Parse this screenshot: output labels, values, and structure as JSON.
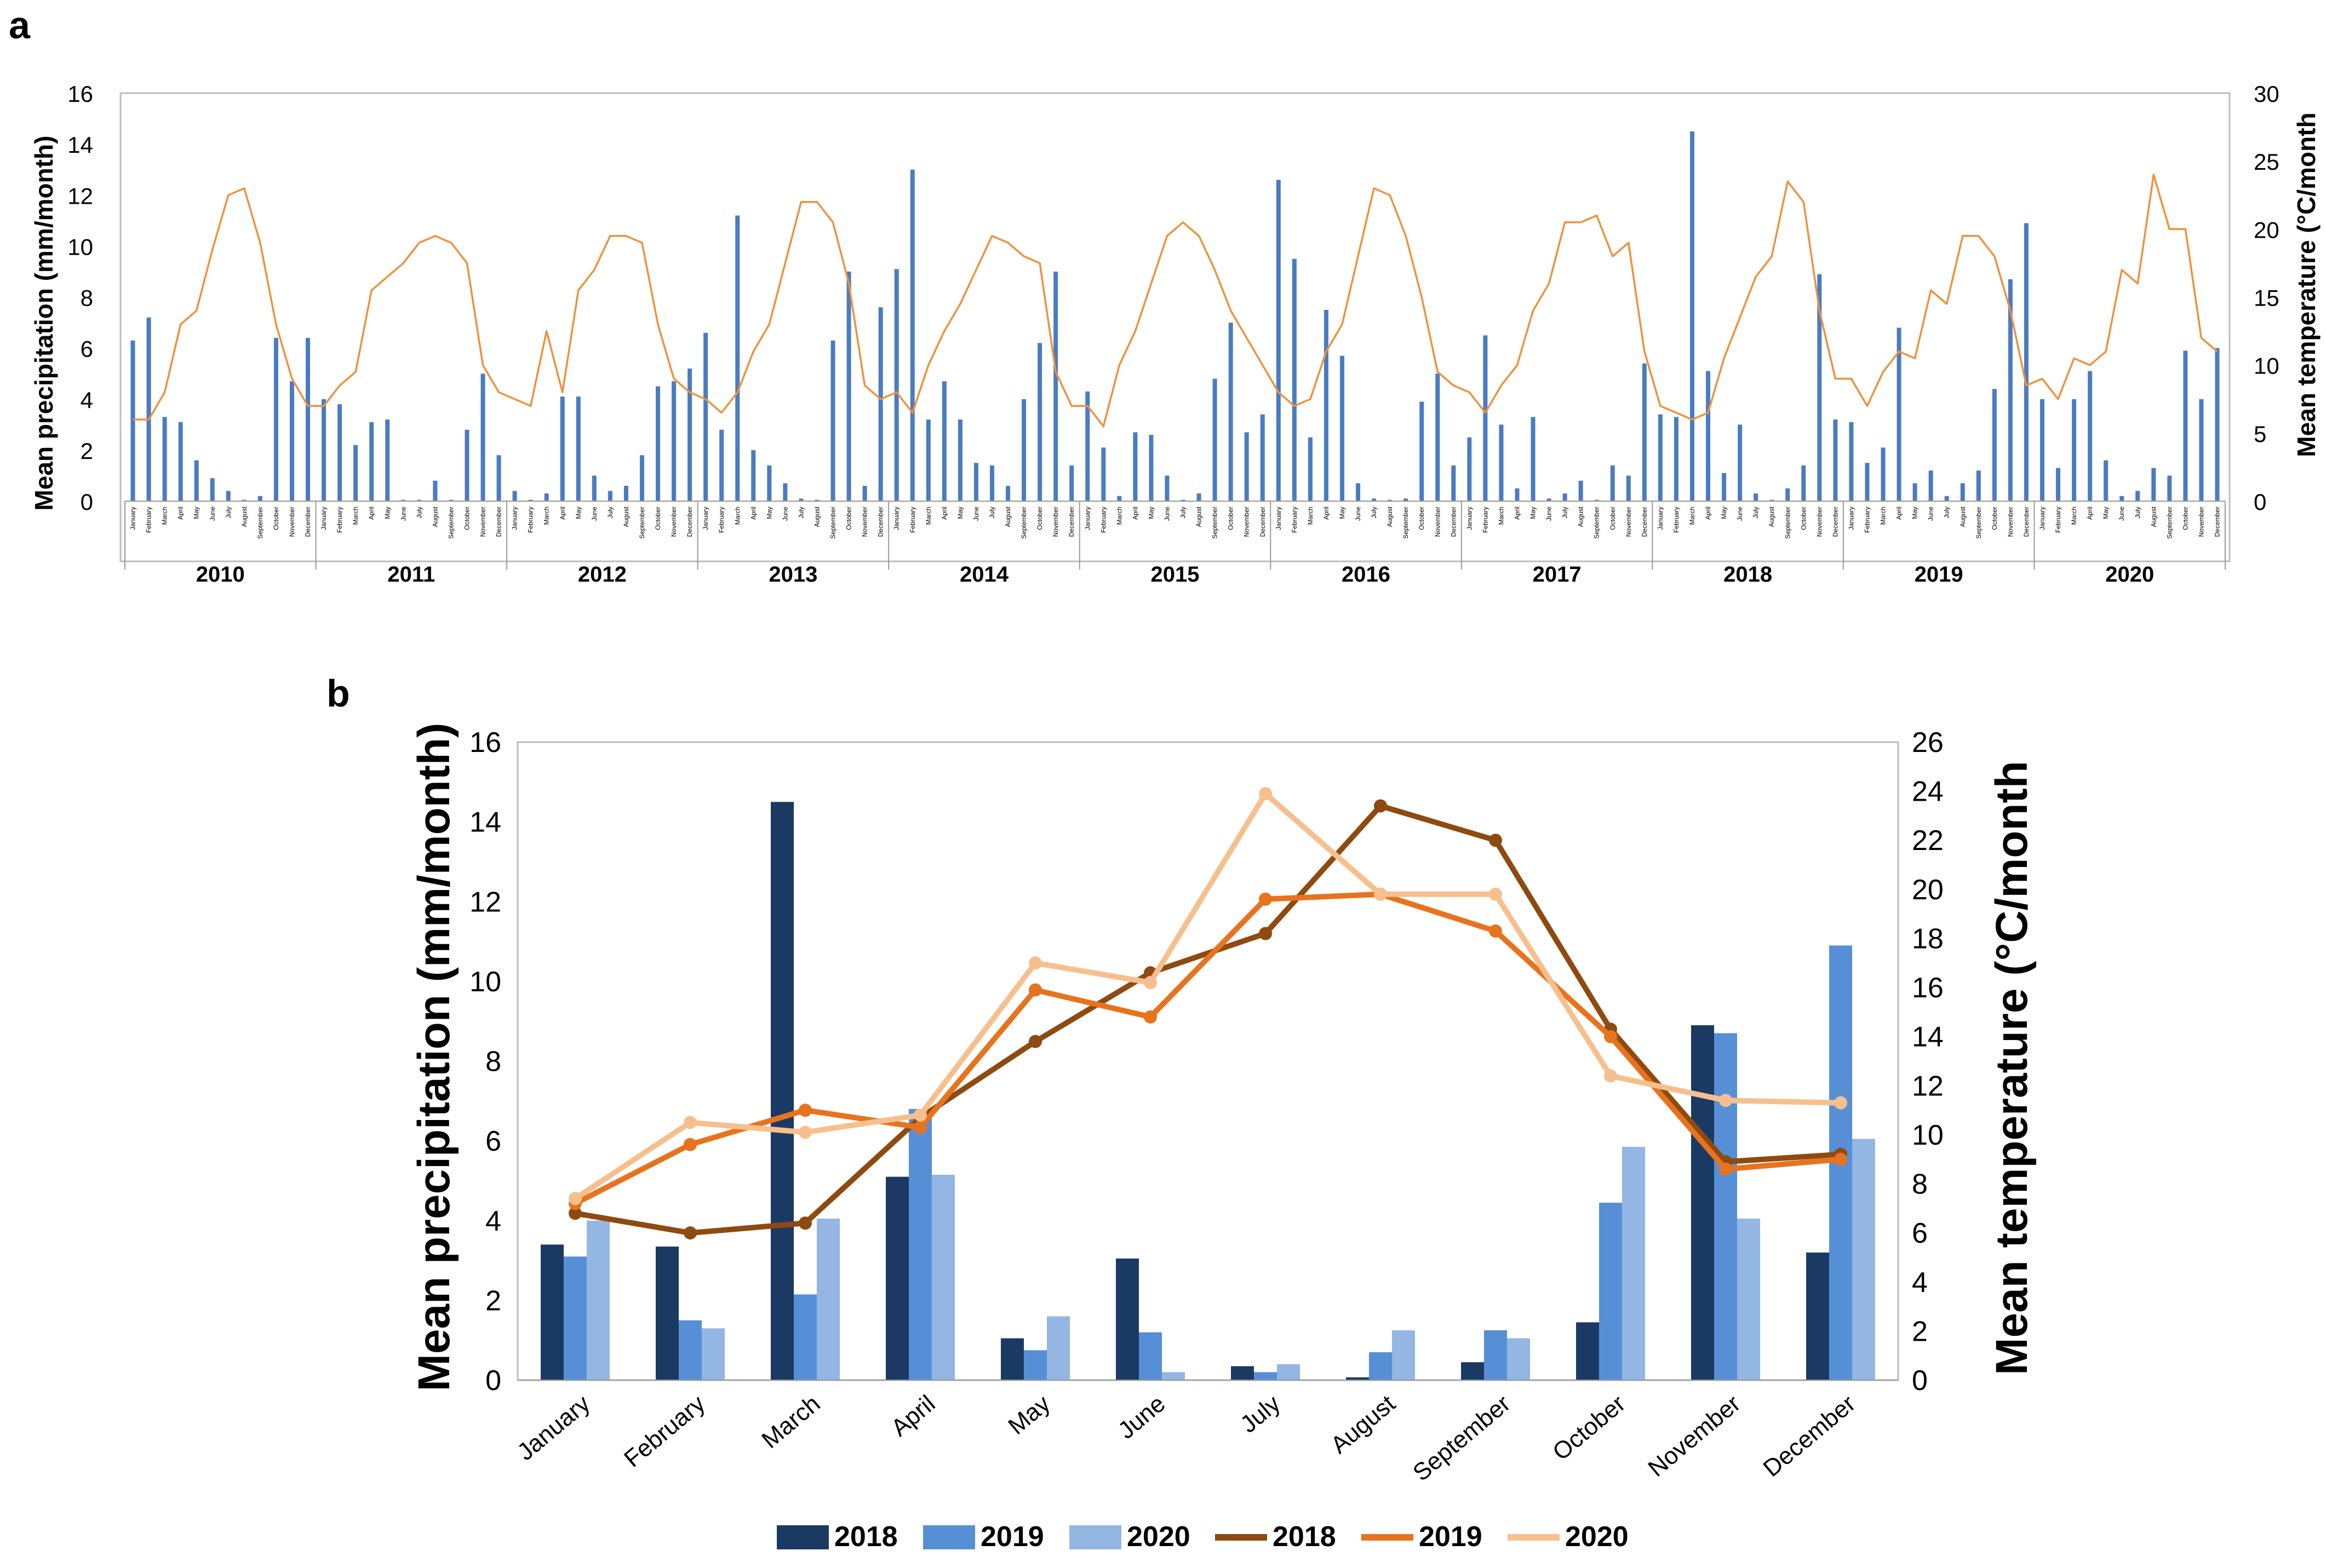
{
  "panel_labels": {
    "a": "a",
    "b": "b"
  },
  "colors": {
    "bar_a": "#4a7cc0",
    "line_a": "#f0913c",
    "bar_2018": "#1b3a63",
    "bar_2019": "#578fd6",
    "bar_2020": "#93b6e3",
    "line_2018": "#8e4a10",
    "line_2019": "#e8731e",
    "line_2020": "#f6c08e",
    "axis": "#9a9a9a",
    "text": "#000000"
  },
  "chart_data": [
    {
      "id": "a",
      "type": "bar+line",
      "title": "",
      "ylabel": "Mean precipitation (mm/month)",
      "y2label": "Mean temperature (°C/month",
      "ylim": [
        0,
        16
      ],
      "y2lim": [
        0,
        30
      ],
      "yticks": [
        0,
        2,
        4,
        6,
        8,
        10,
        12,
        14,
        16
      ],
      "y2ticks": [
        0,
        5,
        10,
        15,
        20,
        25,
        30
      ],
      "months": [
        "January",
        "February",
        "March",
        "April",
        "May",
        "June",
        "July",
        "August",
        "September",
        "October",
        "November",
        "December"
      ],
      "years": [
        "2010",
        "2011",
        "2012",
        "2013",
        "2014",
        "2015",
        "2016",
        "2017",
        "2018",
        "2019",
        "2020"
      ],
      "precipitation": [
        6.3,
        7.2,
        3.3,
        3.1,
        1.6,
        0.9,
        0.4,
        0.05,
        0.2,
        6.4,
        4.7,
        6.4,
        4.0,
        3.8,
        2.2,
        3.1,
        3.2,
        0.05,
        0.05,
        0.8,
        0.05,
        2.8,
        5.0,
        1.8,
        0.4,
        0.05,
        0.3,
        4.1,
        4.1,
        1.0,
        0.4,
        0.6,
        1.8,
        4.5,
        4.7,
        5.2,
        6.6,
        2.8,
        11.2,
        2.0,
        1.4,
        0.7,
        0.1,
        0.05,
        6.3,
        9.0,
        0.6,
        7.6,
        9.1,
        13.0,
        3.2,
        4.7,
        3.2,
        1.5,
        1.4,
        0.6,
        4.0,
        6.2,
        9.0,
        1.4,
        4.3,
        2.1,
        0.2,
        2.7,
        2.6,
        1.0,
        0.05,
        0.3,
        4.8,
        7.0,
        2.7,
        3.4,
        12.6,
        9.5,
        2.5,
        7.5,
        5.7,
        0.7,
        0.1,
        0.05,
        0.1,
        3.9,
        5.0,
        1.4,
        2.5,
        6.5,
        3.0,
        0.5,
        3.3,
        0.1,
        0.3,
        0.8,
        0.05,
        1.4,
        1.0,
        5.4,
        3.4,
        3.3,
        14.5,
        5.1,
        1.1,
        3.0,
        0.3,
        0.05,
        0.5,
        1.4,
        8.9,
        3.2,
        3.1,
        1.5,
        2.1,
        6.8,
        0.7,
        1.2,
        0.2,
        0.7,
        1.2,
        4.4,
        8.7,
        10.9,
        4.0,
        1.3,
        4.0,
        5.1,
        1.6,
        0.2,
        0.4,
        1.3,
        1.0,
        5.9,
        4.0,
        6.0
      ],
      "temperature": [
        6.0,
        6.0,
        8.0,
        13.0,
        14.0,
        18.5,
        22.5,
        23.0,
        19.0,
        13.0,
        9.0,
        7.0,
        7.0,
        8.5,
        9.5,
        15.5,
        16.5,
        17.5,
        19.0,
        19.5,
        19.0,
        17.5,
        10.0,
        8.0,
        7.5,
        7.0,
        12.5,
        8.0,
        15.5,
        17.0,
        19.5,
        19.5,
        19.0,
        13.0,
        9.0,
        8.0,
        7.5,
        6.5,
        8.0,
        11.0,
        13.0,
        17.5,
        22.0,
        22.0,
        20.5,
        16.0,
        8.5,
        7.5,
        8.0,
        6.5,
        10.0,
        12.5,
        14.5,
        17.0,
        19.5,
        19.0,
        18.0,
        17.5,
        9.5,
        7.0,
        7.0,
        5.5,
        10.0,
        12.5,
        16.0,
        19.5,
        20.5,
        19.5,
        17.0,
        14.0,
        12.0,
        10.0,
        8.0,
        7.0,
        7.5,
        11.0,
        13.0,
        18.0,
        23.0,
        22.5,
        19.5,
        15.0,
        9.5,
        8.5,
        8.0,
        6.5,
        8.5,
        10.0,
        14.0,
        16.0,
        20.5,
        20.5,
        21.0,
        18.0,
        19.0,
        11.0,
        7.0,
        6.5,
        6.0,
        6.5,
        10.5,
        13.5,
        16.5,
        18.0,
        23.5,
        22.0,
        14.0,
        9.0,
        9.0,
        7.0,
        9.5,
        11.0,
        10.5,
        15.5,
        14.5,
        19.5,
        19.5,
        18.0,
        14.0,
        8.5,
        9.0,
        7.5,
        10.5,
        10.0,
        11.0,
        17.0,
        16.0,
        24.0,
        20.0,
        20.0,
        12.0,
        11.0
      ]
    },
    {
      "id": "b",
      "type": "bar+line",
      "title": "",
      "ylabel": "Mean precipitation (mm/month)",
      "y2label": "Mean temperature (°C/month",
      "ylim": [
        0,
        16
      ],
      "y2lim": [
        0,
        26
      ],
      "yticks": [
        0,
        2,
        4,
        6,
        8,
        10,
        12,
        14,
        16
      ],
      "y2ticks": [
        0,
        2,
        4,
        6,
        8,
        10,
        12,
        14,
        16,
        18,
        20,
        22,
        24,
        26
      ],
      "categories": [
        "January",
        "February",
        "March",
        "April",
        "May",
        "June",
        "July",
        "August",
        "September",
        "October",
        "November",
        "December"
      ],
      "bar_series": [
        {
          "name": "2018",
          "color_key": "bar_2018",
          "values": [
            3.4,
            3.35,
            14.5,
            5.1,
            1.05,
            3.05,
            0.35,
            0.07,
            0.45,
            1.45,
            8.9,
            3.2
          ]
        },
        {
          "name": "2019",
          "color_key": "bar_2019",
          "values": [
            3.1,
            1.5,
            2.15,
            6.8,
            0.75,
            1.2,
            0.2,
            0.7,
            1.25,
            4.45,
            8.7,
            10.9
          ]
        },
        {
          "name": "2020",
          "color_key": "bar_2020",
          "values": [
            4.0,
            1.3,
            4.05,
            5.15,
            1.6,
            0.2,
            0.4,
            1.25,
            1.05,
            5.85,
            4.05,
            6.05
          ]
        }
      ],
      "line_series": [
        {
          "name": "2018",
          "color_key": "line_2018",
          "values": [
            6.8,
            6.0,
            6.4,
            10.7,
            13.8,
            16.6,
            18.2,
            23.4,
            22.0,
            14.3,
            8.9,
            9.2
          ]
        },
        {
          "name": "2019",
          "color_key": "line_2019",
          "values": [
            7.2,
            9.6,
            11.0,
            10.3,
            15.9,
            14.8,
            19.6,
            19.8,
            18.3,
            14.0,
            8.6,
            9.0
          ]
        },
        {
          "name": "2020",
          "color_key": "line_2020",
          "values": [
            7.4,
            10.5,
            10.1,
            10.8,
            17.0,
            16.2,
            23.9,
            19.8,
            19.8,
            12.4,
            11.4,
            11.3
          ]
        }
      ],
      "legend": [
        {
          "label": "2018",
          "kind": "bar",
          "color_key": "bar_2018"
        },
        {
          "label": "2019",
          "kind": "bar",
          "color_key": "bar_2019"
        },
        {
          "label": "2020",
          "kind": "bar",
          "color_key": "bar_2020"
        },
        {
          "label": "2018",
          "kind": "line",
          "color_key": "line_2018"
        },
        {
          "label": "2019",
          "kind": "line",
          "color_key": "line_2019"
        },
        {
          "label": "2020",
          "kind": "line",
          "color_key": "line_2020"
        }
      ],
      "legend_position": "bottom-center"
    }
  ]
}
